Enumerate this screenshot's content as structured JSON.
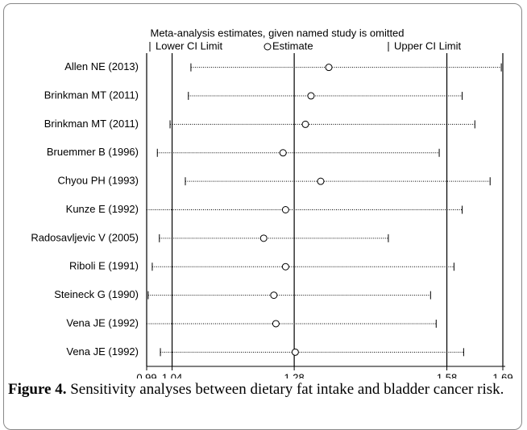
{
  "chart_data": {
    "type": "forest",
    "legend": {
      "title": "Meta-analysis estimates, given named study is omitted",
      "items": [
        "Lower CI Limit",
        "Estimate",
        "Upper CI Limit"
      ]
    },
    "categories": [
      "Allen NE (2013)",
      "Brinkman MT (2011)",
      "Brinkman MT (2011)",
      "Bruemmer B (1996)",
      "Chyou PH (1993)",
      "Kunze E (1992)",
      "Radosavljevic V (2005)",
      "Riboli E (1991)",
      "Steineck G (1990)",
      "Vena JE (1992)",
      "Vena JE (1992)"
    ],
    "lower": [
      1.077,
      1.072,
      1.036,
      1.011,
      1.066,
      0.99,
      1.015,
      1.001,
      0.993,
      0.99,
      1.017
    ],
    "estimate": [
      1.348,
      1.313,
      1.302,
      1.258,
      1.332,
      1.263,
      1.22,
      1.263,
      1.24,
      1.244,
      1.282
    ],
    "upper": [
      1.687,
      1.61,
      1.635,
      1.565,
      1.665,
      1.61,
      1.465,
      1.594,
      1.548,
      1.559,
      1.613
    ],
    "xlim": [
      0.99,
      1.69
    ],
    "xticks": [
      0.99,
      1.04,
      1.28,
      1.58,
      1.69
    ],
    "grid": true,
    "color": "#000000"
  },
  "caption": {
    "label": "Figure 4.",
    "text": "Sensitivity analyses between dietary fat intake and bladder cancer risk."
  }
}
